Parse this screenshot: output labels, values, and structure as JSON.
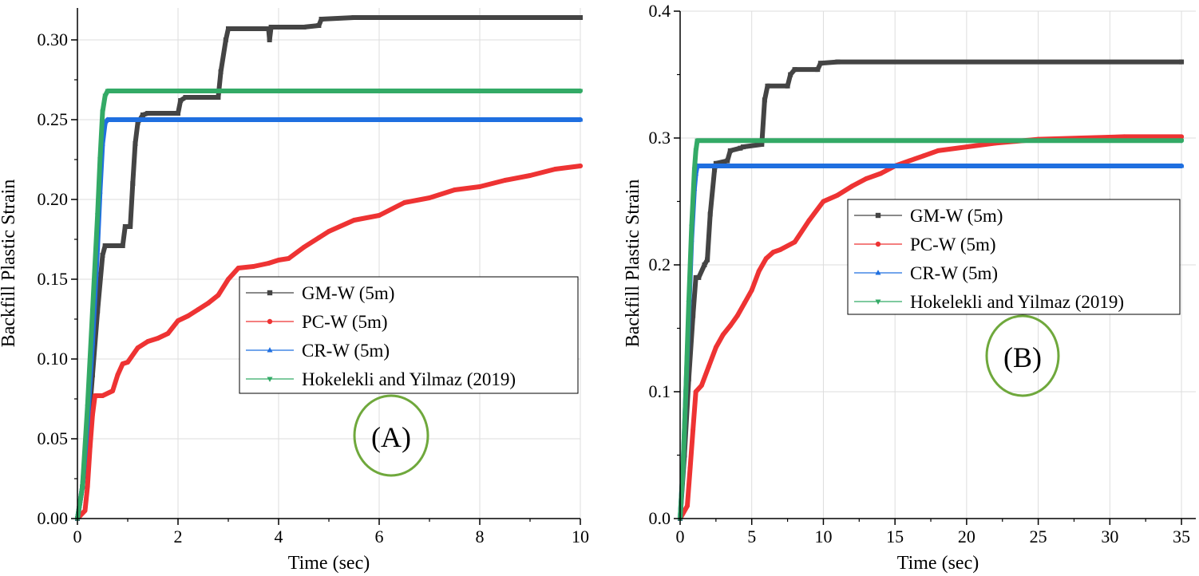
{
  "colors": {
    "GM": "#444444",
    "PC": "#ee3333",
    "CR": "#1f6fe0",
    "HY": "#33aa66",
    "ellipse": "#6fa83c",
    "grid": "#dddddd"
  },
  "legend_labels": [
    "GM-W (5m)",
    "PC-W (5m)",
    "CR-W (5m)",
    "Hokelekli and Yilmaz (2019)"
  ],
  "chart_data": [
    {
      "type": "line",
      "panel_label": "(A)",
      "xlabel": "Time (sec)",
      "ylabel": "Backfill Plastic Strain",
      "xlim": [
        0,
        10
      ],
      "ylim": [
        0,
        0.32
      ],
      "xticks": [
        "0",
        "2",
        "4",
        "6",
        "8",
        "10"
      ],
      "yticks": [
        "0.00",
        "0.05",
        "0.10",
        "0.15",
        "0.20",
        "0.25",
        "0.30"
      ],
      "grid": true,
      "legend_position": "center-right",
      "series": [
        {
          "name": "GM-W (5m)",
          "key": "GM",
          "marker": "square",
          "x": [
            0,
            0.1,
            0.2,
            0.3,
            0.4,
            0.5,
            0.55,
            0.9,
            0.95,
            1.05,
            1.1,
            1.15,
            1.2,
            1.3,
            1.4,
            1.6,
            2.0,
            2.05,
            2.15,
            2.8,
            2.85,
            2.95,
            3.0,
            3.8,
            3.82,
            3.85,
            3.9,
            4.5,
            4.8,
            4.85,
            5.5,
            10
          ],
          "y": [
            0,
            0.02,
            0.05,
            0.09,
            0.13,
            0.165,
            0.171,
            0.171,
            0.183,
            0.183,
            0.21,
            0.235,
            0.248,
            0.253,
            0.254,
            0.254,
            0.254,
            0.262,
            0.264,
            0.264,
            0.28,
            0.3,
            0.307,
            0.307,
            0.3,
            0.308,
            0.308,
            0.308,
            0.309,
            0.313,
            0.314,
            0.314
          ]
        },
        {
          "name": "PC-W (5m)",
          "key": "PC",
          "marker": "circle",
          "x": [
            0,
            0.15,
            0.2,
            0.25,
            0.3,
            0.35,
            0.4,
            0.5,
            0.7,
            0.8,
            0.9,
            1.0,
            1.2,
            1.4,
            1.6,
            1.8,
            2.0,
            2.2,
            2.4,
            2.6,
            2.8,
            3.0,
            3.2,
            3.5,
            3.8,
            4.0,
            4.2,
            4.5,
            4.8,
            5.0,
            5.5,
            6.0,
            6.5,
            7.0,
            7.5,
            8.0,
            8.5,
            9.0,
            9.5,
            10
          ],
          "y": [
            0,
            0.005,
            0.02,
            0.045,
            0.065,
            0.077,
            0.077,
            0.077,
            0.08,
            0.09,
            0.097,
            0.098,
            0.107,
            0.111,
            0.113,
            0.116,
            0.124,
            0.127,
            0.131,
            0.135,
            0.14,
            0.15,
            0.157,
            0.158,
            0.16,
            0.162,
            0.163,
            0.17,
            0.176,
            0.18,
            0.187,
            0.19,
            0.198,
            0.201,
            0.206,
            0.208,
            0.212,
            0.215,
            0.219,
            0.221
          ]
        },
        {
          "name": "CR-W (5m)",
          "key": "CR",
          "marker": "triangle-up",
          "x": [
            0,
            0.1,
            0.2,
            0.3,
            0.4,
            0.45,
            0.5,
            0.55,
            0.6,
            10
          ],
          "y": [
            0,
            0.02,
            0.06,
            0.11,
            0.17,
            0.205,
            0.235,
            0.248,
            0.25,
            0.25
          ]
        },
        {
          "name": "Hokelekli and Yilmaz (2019)",
          "key": "HY",
          "marker": "triangle-down",
          "x": [
            0,
            0.1,
            0.2,
            0.3,
            0.4,
            0.45,
            0.5,
            0.55,
            0.6,
            10
          ],
          "y": [
            0,
            0.02,
            0.07,
            0.13,
            0.19,
            0.225,
            0.255,
            0.265,
            0.268,
            0.268
          ]
        }
      ]
    },
    {
      "type": "line",
      "panel_label": "(B)",
      "xlabel": "Time (sec)",
      "ylabel": "Backfill Plastic Strain",
      "xlim": [
        0,
        36
      ],
      "ylim": [
        0,
        0.4
      ],
      "xticks": [
        "0",
        "5",
        "10",
        "15",
        "20",
        "25",
        "30",
        "35"
      ],
      "yticks": [
        "0.0",
        "0.1",
        "0.2",
        "0.3",
        "0.4"
      ],
      "grid": true,
      "legend_position": "center-right",
      "series": [
        {
          "name": "GM-W (5m)",
          "key": "GM",
          "marker": "square",
          "x": [
            0,
            0.3,
            0.6,
            0.9,
            1.1,
            1.3,
            1.7,
            1.9,
            2.1,
            2.4,
            2.5,
            3.3,
            3.5,
            4.2,
            4.4,
            5.7,
            5.9,
            6.1,
            7.5,
            7.7,
            8.0,
            9.6,
            9.8,
            11.0,
            35
          ],
          "y": [
            0,
            0.05,
            0.11,
            0.16,
            0.19,
            0.19,
            0.2,
            0.204,
            0.24,
            0.275,
            0.28,
            0.282,
            0.29,
            0.292,
            0.293,
            0.295,
            0.33,
            0.341,
            0.341,
            0.35,
            0.354,
            0.354,
            0.359,
            0.36,
            0.36
          ]
        },
        {
          "name": "PC-W (5m)",
          "key": "PC",
          "marker": "circle",
          "x": [
            0,
            0.5,
            0.7,
            0.9,
            1.1,
            1.5,
            2.0,
            2.5,
            3.0,
            3.5,
            4.0,
            4.5,
            5.0,
            5.5,
            6.0,
            6.5,
            7.0,
            8.0,
            9.0,
            10.0,
            11.0,
            12.0,
            13.0,
            14.0,
            15.0,
            16.0,
            17.0,
            18.0,
            20.0,
            22.0,
            25.0,
            28.0,
            31.0,
            35
          ],
          "y": [
            0,
            0.01,
            0.04,
            0.07,
            0.1,
            0.105,
            0.12,
            0.135,
            0.145,
            0.152,
            0.16,
            0.17,
            0.18,
            0.195,
            0.205,
            0.21,
            0.212,
            0.218,
            0.235,
            0.25,
            0.255,
            0.262,
            0.268,
            0.272,
            0.278,
            0.282,
            0.286,
            0.29,
            0.293,
            0.296,
            0.299,
            0.3,
            0.301,
            0.301
          ]
        },
        {
          "name": "CR-W (5m)",
          "key": "CR",
          "marker": "triangle-up",
          "x": [
            0,
            0.2,
            0.4,
            0.6,
            0.8,
            1.0,
            1.1,
            1.2,
            35
          ],
          "y": [
            0,
            0.04,
            0.1,
            0.16,
            0.22,
            0.26,
            0.272,
            0.278,
            0.278
          ]
        },
        {
          "name": "Hokelekli and Yilmaz (2019)",
          "key": "HY",
          "marker": "triangle-down",
          "x": [
            0,
            0.2,
            0.4,
            0.6,
            0.8,
            1.0,
            1.1,
            1.2,
            35
          ],
          "y": [
            0,
            0.04,
            0.1,
            0.17,
            0.23,
            0.275,
            0.29,
            0.298,
            0.298
          ]
        }
      ]
    }
  ]
}
